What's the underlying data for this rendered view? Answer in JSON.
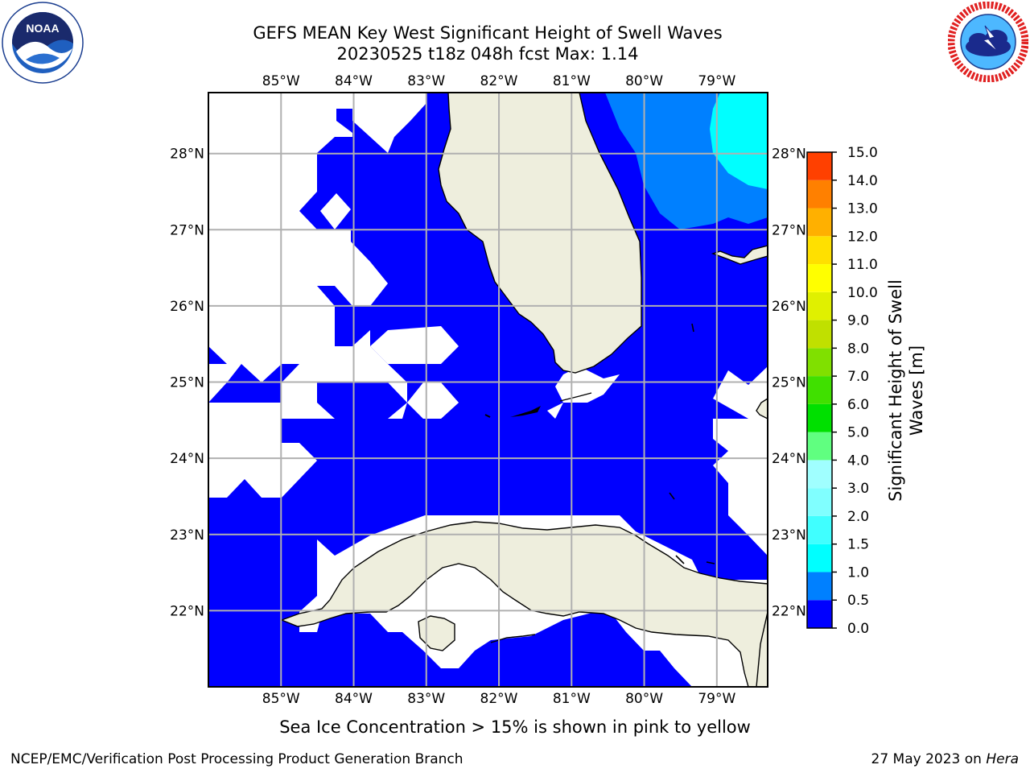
{
  "header": {
    "title_line1": "GEFS MEAN Key West Significant Height of Swell Waves",
    "title_line2": "20230525 t18z 048h fcst   Max: 1.14"
  },
  "logos": {
    "left": {
      "name": "noaa-logo",
      "text": "NOAA",
      "ring_text": "NATIONAL OCEANIC AND ATMOSPHERIC ADMINISTRATION · U.S. DEPARTMENT OF COMMERCE"
    },
    "right": {
      "name": "nws-logo",
      "ring_text": "NATIONAL WEATHER SERVICE"
    }
  },
  "map": {
    "lon_labels": [
      "85°W",
      "84°W",
      "83°W",
      "82°W",
      "81°W",
      "80°W",
      "79°W"
    ],
    "lat_labels": [
      "28°N",
      "27°N",
      "26°N",
      "25°N",
      "24°N",
      "23°N",
      "22°N"
    ],
    "lon_range": [
      -86,
      -78.3
    ],
    "lat_range": [
      21,
      28.8
    ],
    "grid": true,
    "colors": {
      "land": "#eeeedd",
      "ocean_low": "#0000ff",
      "ocean_mid": "#0080ff",
      "ocean_high": "#00ffff",
      "no_data": "#ffffff",
      "grid": "#b0b0b0"
    }
  },
  "colorbar": {
    "label": "Significant Height of Swell Waves [m]",
    "ticks": [
      "0.0",
      "0.5",
      "1.0",
      "1.5",
      "2.0",
      "3.0",
      "4.0",
      "5.0",
      "6.0",
      "7.0",
      "8.0",
      "9.0",
      "10.0",
      "11.0",
      "12.0",
      "13.0",
      "14.0",
      "15.0"
    ],
    "colors": [
      "#0000ff",
      "#0080ff",
      "#00ffff",
      "#40ffff",
      "#80ffff",
      "#a0ffff",
      "#60ff80",
      "#00e000",
      "#40e000",
      "#80e000",
      "#c0e000",
      "#e0f000",
      "#ffff00",
      "#ffe000",
      "#ffb000",
      "#ff8000",
      "#ff4000",
      "#ff0000"
    ]
  },
  "note": "Sea Ice Concentration > 15% is shown in pink to yellow",
  "footer": {
    "left": "NCEP/EMC/Verification Post Processing Product Generation Branch",
    "right_date": "27 May 2023 on",
    "right_host": "Hera"
  }
}
